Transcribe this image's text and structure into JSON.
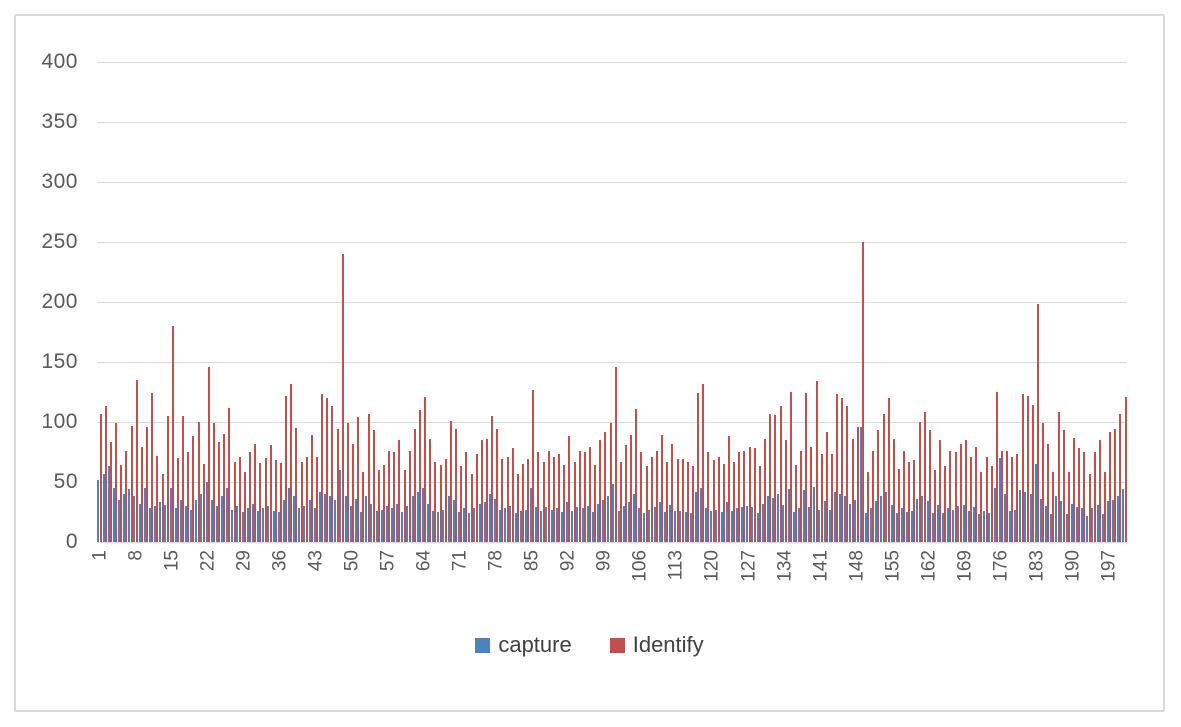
{
  "chart_data": {
    "type": "bar",
    "subtype": "clustered",
    "title": "",
    "xlabel": "",
    "ylabel": "",
    "n_categories": 200,
    "x_tick_labels": [
      1,
      8,
      15,
      22,
      29,
      36,
      43,
      50,
      57,
      64,
      71,
      78,
      85,
      92,
      99,
      106,
      113,
      120,
      127,
      134,
      141,
      148,
      155,
      162,
      169,
      176,
      183,
      190,
      197
    ],
    "yticks": [
      0,
      50,
      100,
      150,
      200,
      250,
      300,
      350,
      400
    ],
    "ylim": [
      0,
      400
    ],
    "grid": "horizontal",
    "legend_position": "bottom",
    "colors": {
      "grid": "#d9d9d9",
      "axis_text": "#595959",
      "frame": "#d9d9d9",
      "capture": "#4F81BD",
      "identify": "#C0504D"
    },
    "series": [
      {
        "name": "capture",
        "color": "#4F81BD",
        "values": [
          52,
          57,
          63,
          45,
          35,
          40,
          44,
          38,
          32,
          45,
          28,
          30,
          33,
          31,
          45,
          28,
          35,
          30,
          27,
          35,
          40,
          50,
          35,
          30,
          38,
          45,
          27,
          30,
          25,
          28,
          32,
          26,
          28,
          30,
          26,
          25,
          35,
          45,
          38,
          28,
          30,
          35,
          28,
          42,
          40,
          38,
          35,
          60,
          38,
          30,
          36,
          25,
          38,
          32,
          26,
          27,
          30,
          28,
          32,
          25,
          30,
          38,
          42,
          45,
          32,
          26,
          25,
          27,
          38,
          35,
          25,
          28,
          24,
          28,
          32,
          33,
          40,
          36,
          27,
          28,
          30,
          24,
          26,
          27,
          45,
          29,
          26,
          29,
          27,
          28,
          25,
          33,
          26,
          29,
          28,
          30,
          25,
          32,
          35,
          38,
          48,
          26,
          30,
          33,
          40,
          28,
          24,
          27,
          29,
          33,
          25,
          31,
          26,
          26,
          25,
          24,
          42,
          45,
          28,
          26,
          27,
          25,
          33,
          26,
          28,
          29,
          30,
          29,
          24,
          32,
          38,
          37,
          40,
          31,
          44,
          25,
          28,
          43,
          29,
          46,
          27,
          34,
          27,
          42,
          40,
          38,
          32,
          35,
          96,
          24,
          28,
          34,
          38,
          42,
          31,
          24,
          28,
          25,
          26,
          36,
          38,
          34,
          24,
          31,
          24,
          28,
          27,
          30,
          31,
          26,
          29,
          23,
          26,
          24,
          45,
          70,
          40,
          26,
          27,
          43,
          42,
          40,
          65,
          36,
          30,
          23,
          38,
          34,
          23,
          32,
          29,
          28,
          22,
          28,
          31,
          23,
          34,
          35,
          38,
          44
        ]
      },
      {
        "name": "Identify",
        "color": "#C0504D",
        "values": [
          107,
          113,
          83,
          99,
          64,
          76,
          97,
          135,
          79,
          96,
          124,
          72,
          57,
          105,
          180,
          70,
          105,
          75,
          88,
          100,
          65,
          146,
          99,
          83,
          90,
          112,
          67,
          71,
          58,
          75,
          82,
          66,
          70,
          81,
          68,
          66,
          122,
          132,
          95,
          67,
          71,
          89,
          71,
          123,
          120,
          113,
          94,
          240,
          99,
          82,
          104,
          58,
          107,
          93,
          60,
          64,
          76,
          75,
          85,
          60,
          76,
          94,
          110,
          121,
          86,
          67,
          64,
          69,
          101,
          94,
          63,
          75,
          57,
          73,
          85,
          86,
          105,
          94,
          69,
          71,
          78,
          57,
          65,
          69,
          127,
          75,
          67,
          76,
          71,
          73,
          64,
          88,
          67,
          76,
          75,
          79,
          64,
          85,
          92,
          99,
          146,
          67,
          81,
          89,
          111,
          75,
          63,
          71,
          76,
          89,
          67,
          82,
          69,
          69,
          67,
          63,
          124,
          132,
          75,
          68,
          71,
          65,
          88,
          67,
          75,
          76,
          79,
          78,
          63,
          86,
          107,
          106,
          113,
          85,
          125,
          64,
          76,
          124,
          79,
          134,
          73,
          92,
          73,
          123,
          120,
          113,
          86,
          96,
          250,
          58,
          76,
          93,
          107,
          120,
          86,
          61,
          76,
          67,
          68,
          100,
          108,
          93,
          60,
          85,
          63,
          76,
          75,
          82,
          85,
          71,
          79,
          58,
          71,
          63,
          125,
          76,
          76,
          71,
          73,
          123,
          122,
          114,
          198,
          99,
          82,
          58,
          108,
          93,
          58,
          87,
          78,
          75,
          57,
          75,
          85,
          58,
          92,
          94,
          107,
          121
        ]
      }
    ]
  }
}
